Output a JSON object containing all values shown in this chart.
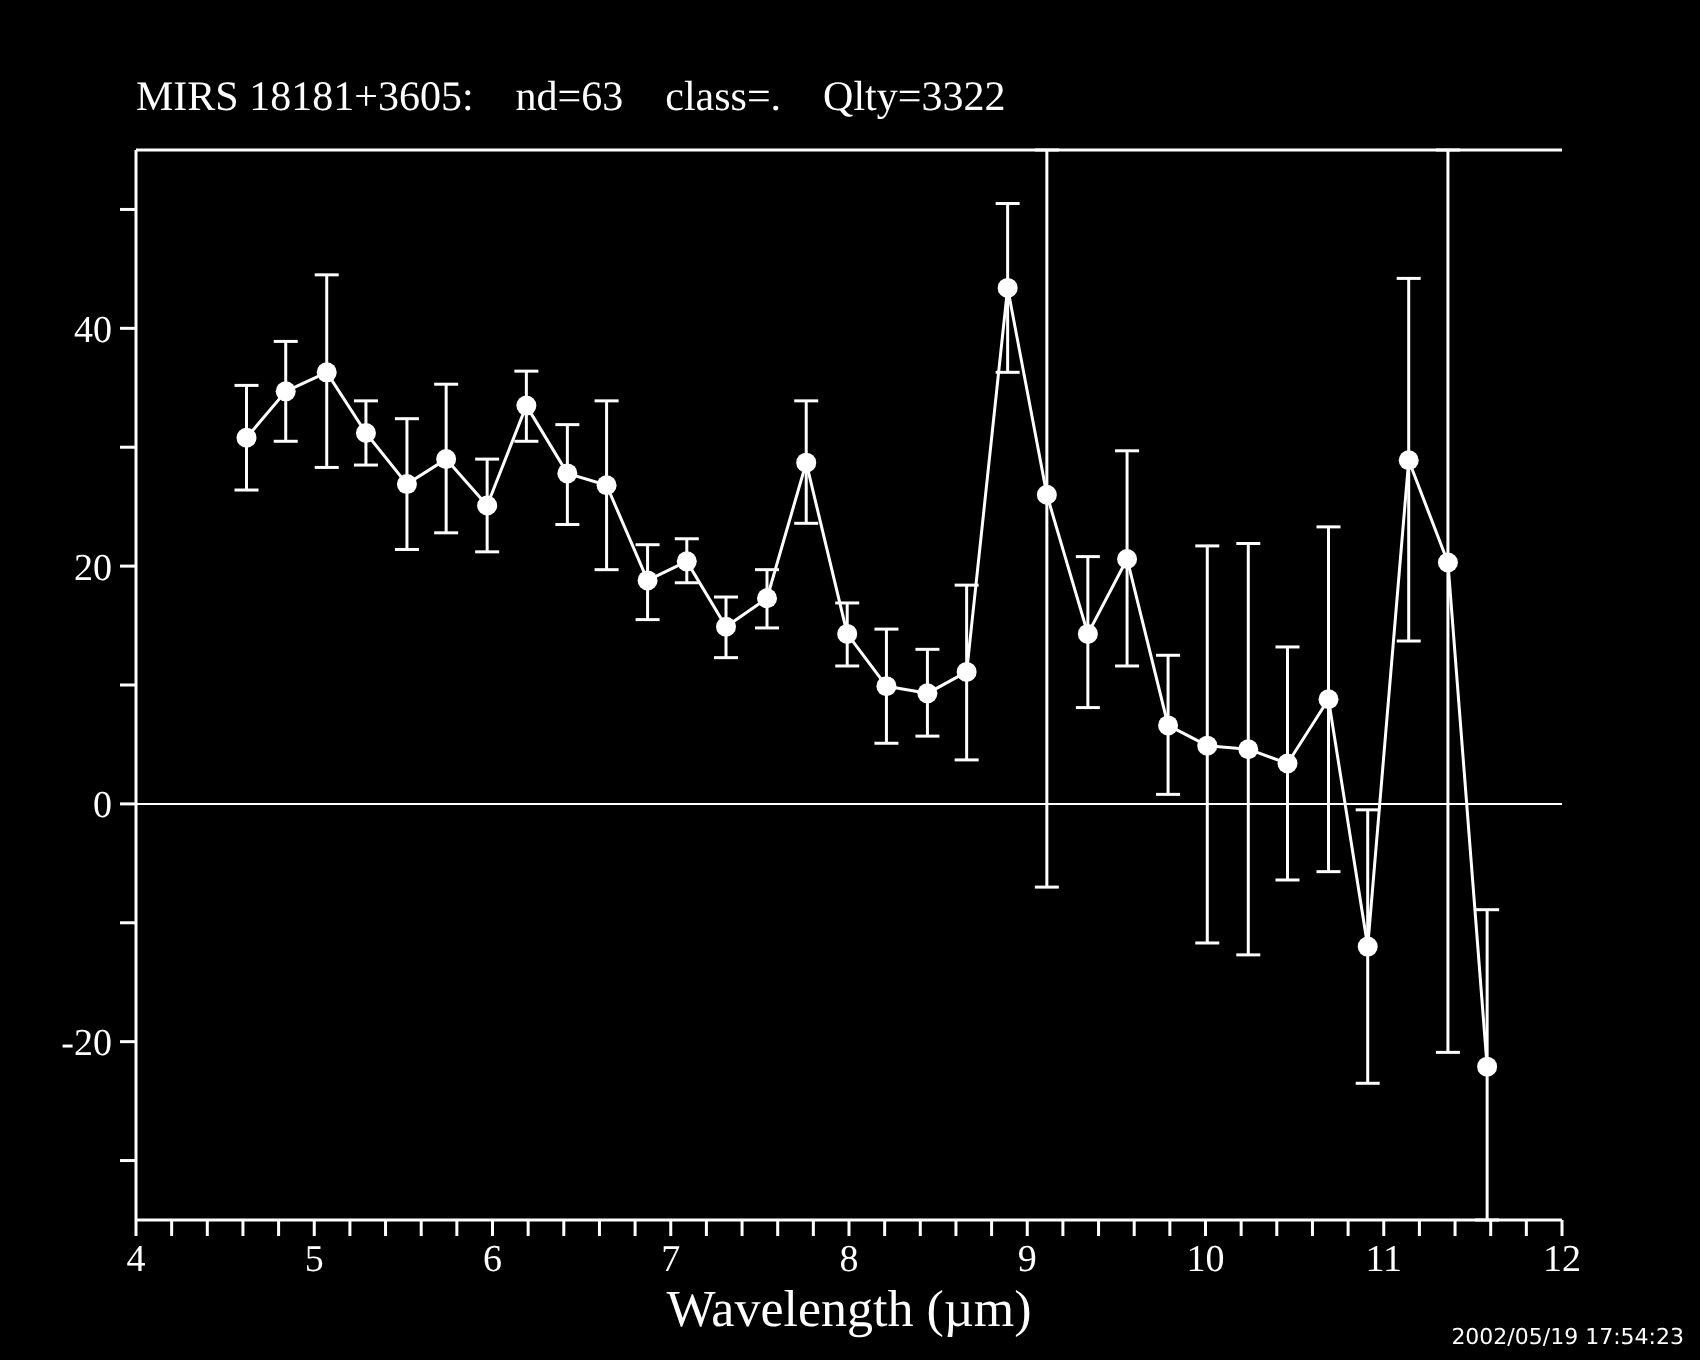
{
  "chart_data": {
    "type": "line",
    "title": "MIRS 18181+3605:    nd=63    class=.    Qlty=3322",
    "xlabel": "Wavelength (µm)",
    "annotations": [
      "2002/05/19 17:54:23"
    ],
    "x": [
      4.62,
      4.84,
      5.07,
      5.29,
      5.52,
      5.74,
      5.97,
      6.19,
      6.42,
      6.64,
      6.87,
      7.09,
      7.31,
      7.54,
      7.76,
      7.99,
      8.21,
      8.44,
      8.66,
      8.89,
      9.11,
      9.34,
      9.56,
      9.79,
      10.01,
      10.24,
      10.46,
      10.69,
      10.91,
      11.14,
      11.36,
      11.58
    ],
    "series": [
      {
        "color": "#ffffff",
        "values": [
          30.8,
          34.7,
          36.3,
          31.2,
          26.9,
          29.0,
          25.1,
          33.5,
          27.8,
          26.8,
          18.8,
          20.4,
          14.9,
          17.3,
          28.7,
          14.3,
          9.9,
          9.3,
          11.1,
          43.4,
          26.0,
          14.3,
          20.6,
          6.6,
          4.9,
          4.6,
          3.4,
          8.8,
          -12.0,
          28.9,
          20.3,
          -22.1
        ],
        "errors": [
          [
            26.4,
            35.2
          ],
          [
            30.5,
            38.9
          ],
          [
            28.3,
            44.5
          ],
          [
            28.5,
            33.9
          ],
          [
            21.4,
            32.4
          ],
          [
            22.8,
            35.3
          ],
          [
            21.2,
            29.0
          ],
          [
            30.5,
            36.4
          ],
          [
            23.5,
            31.9
          ],
          [
            19.7,
            33.9
          ],
          [
            15.5,
            21.8
          ],
          [
            18.6,
            22.3
          ],
          [
            12.3,
            17.4
          ],
          [
            14.8,
            19.7
          ],
          [
            23.6,
            33.9
          ],
          [
            11.6,
            16.9
          ],
          [
            5.1,
            14.7
          ],
          [
            5.7,
            13.0
          ],
          [
            3.7,
            18.4
          ],
          [
            36.3,
            50.5
          ],
          [
            -7.0,
            55
          ],
          [
            8.1,
            20.8
          ],
          [
            11.6,
            29.7
          ],
          [
            0.8,
            12.5
          ],
          [
            -11.7,
            21.7
          ],
          [
            -12.7,
            21.9
          ],
          [
            -6.4,
            13.2
          ],
          [
            -5.7,
            23.3
          ],
          [
            -23.5,
            -0.5
          ],
          [
            13.7,
            44.2
          ],
          [
            -20.9,
            55
          ],
          [
            -35,
            -8.9
          ]
        ]
      }
    ],
    "xlim": [
      4,
      12
    ],
    "ylim": [
      -35,
      55
    ],
    "xticks": [
      4,
      {
        "value": 4.2,
        "label": null
      },
      {
        "value": 4.4,
        "label": null
      },
      {
        "value": 4.6,
        "label": null
      },
      {
        "value": 4.8,
        "label": null
      },
      5,
      {
        "value": 5.2,
        "label": null
      },
      {
        "value": 5.4,
        "label": null
      },
      {
        "value": 5.6,
        "label": null
      },
      {
        "value": 5.8,
        "label": null
      },
      6,
      {
        "value": 6.2,
        "label": null
      },
      {
        "value": 6.4,
        "label": null
      },
      {
        "value": 6.6,
        "label": null
      },
      {
        "value": 6.8,
        "label": null
      },
      7,
      {
        "value": 7.2,
        "label": null
      },
      {
        "value": 7.4,
        "label": null
      },
      {
        "value": 7.6,
        "label": null
      },
      {
        "value": 7.8,
        "label": null
      },
      8,
      {
        "value": 8.2,
        "label": null
      },
      {
        "value": 8.4,
        "label": null
      },
      {
        "value": 8.6,
        "label": null
      },
      {
        "value": 8.8,
        "label": null
      },
      9,
      {
        "value": 9.2,
        "label": null
      },
      {
        "value": 9.4,
        "label": null
      },
      {
        "value": 9.6,
        "label": null
      },
      {
        "value": 9.8,
        "label": null
      },
      10,
      {
        "value": 10.2,
        "label": null
      },
      {
        "value": 10.4,
        "label": null
      },
      {
        "value": 10.6,
        "label": null
      },
      {
        "value": 10.8,
        "label": null
      },
      11,
      {
        "value": 11.2,
        "label": null
      },
      {
        "value": 11.4,
        "label": null
      },
      {
        "value": 11.6,
        "label": null
      },
      {
        "value": 11.8,
        "label": null
      },
      12
    ],
    "yticks": [
      {
        "value": -30,
        "label": null
      },
      -20,
      {
        "value": -10,
        "label": null
      },
      0,
      {
        "value": 10,
        "label": null
      },
      20,
      {
        "value": 30,
        "label": null
      },
      40,
      {
        "value": 50,
        "label": null
      }
    ],
    "ref_lines": [
      {
        "axis": "y",
        "value": 0,
        "color": "#ffffff"
      }
    ],
    "marker": "circle",
    "line_style": "solid"
  }
}
